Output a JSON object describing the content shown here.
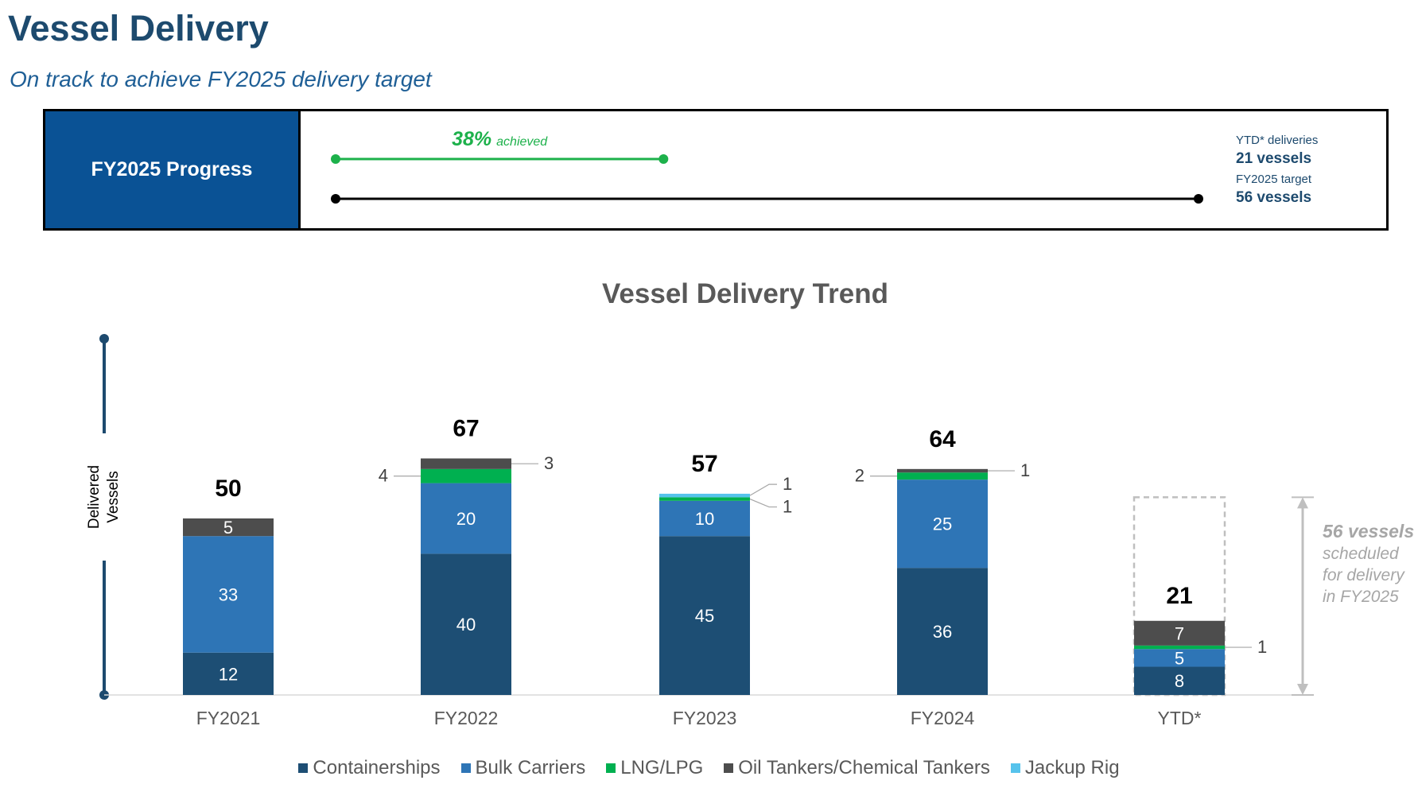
{
  "header": {
    "title": "Vessel Delivery",
    "subtitle": "On track to achieve FY2025 delivery target"
  },
  "progress": {
    "label": "FY2025 Progress",
    "percent_text": "38%",
    "achieved_text": "achieved",
    "fraction": 0.38,
    "ytd_label": "YTD* deliveries",
    "ytd_value": "21 vessels",
    "target_label": "FY2025 target",
    "target_value": "56 vessels",
    "colors": {
      "achieved": "#1db14b",
      "target": "#000000",
      "label_bg": "#0a5295"
    }
  },
  "chart_data": {
    "type": "bar",
    "stacked": true,
    "title": "Vessel Delivery Trend",
    "ylabel": "Delivered\nVessels",
    "xlabel": "",
    "categories": [
      "FY2021",
      "FY2022",
      "FY2023",
      "FY2024",
      "YTD*"
    ],
    "ylim": [
      0,
      67
    ],
    "series": [
      {
        "name": "Containerships",
        "color": "#1d4e74",
        "values": [
          12,
          40,
          45,
          36,
          8
        ]
      },
      {
        "name": "Bulk Carriers",
        "color": "#2e75b6",
        "values": [
          33,
          20,
          10,
          25,
          5
        ]
      },
      {
        "name": "LNG/LPG",
        "color": "#00b050",
        "values": [
          0,
          4,
          1,
          2,
          1
        ]
      },
      {
        "name": "Oil Tankers/Chemical Tankers",
        "color": "#4d4d4d",
        "values": [
          5,
          3,
          0,
          1,
          7
        ]
      },
      {
        "name": "Jackup Rig",
        "color": "#56c3ec",
        "values": [
          0,
          0,
          1,
          0,
          0
        ]
      }
    ],
    "totals": [
      50,
      67,
      57,
      64,
      21
    ],
    "annotation": {
      "target": 56,
      "target_text": "56 vessels",
      "target_subtext": "scheduled\nfor delivery\nin FY2025"
    }
  }
}
